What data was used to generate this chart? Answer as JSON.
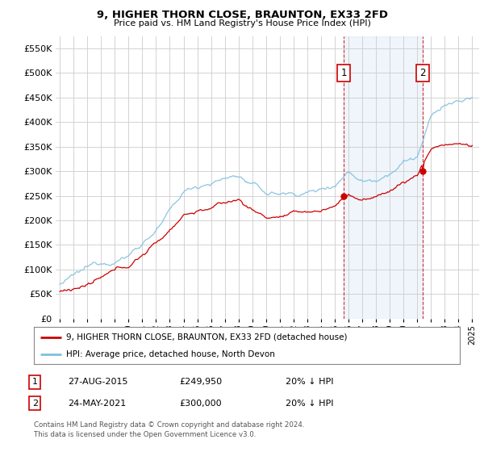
{
  "title": "9, HIGHER THORN CLOSE, BRAUNTON, EX33 2FD",
  "subtitle": "Price paid vs. HM Land Registry's House Price Index (HPI)",
  "legend_line1": "9, HIGHER THORN CLOSE, BRAUNTON, EX33 2FD (detached house)",
  "legend_line2": "HPI: Average price, detached house, North Devon",
  "ann1": {
    "label": "1",
    "date": "27-AUG-2015",
    "price": "£249,950",
    "pct": "20% ↓ HPI",
    "x_year": 2015.65,
    "y_val": 249950
  },
  "ann2": {
    "label": "2",
    "date": "24-MAY-2021",
    "price": "£300,000",
    "pct": "20% ↓ HPI",
    "x_year": 2021.38,
    "y_val": 300000
  },
  "footnote": "Contains HM Land Registry data © Crown copyright and database right 2024.\nThis data is licensed under the Open Government Licence v3.0.",
  "hpi_color": "#7fbfdf",
  "price_color": "#cc0000",
  "shade_color": "#ddeeff",
  "vline_color": "#cc0000",
  "ann_box_color": "#cc0000",
  "ylim": [
    0,
    575000
  ],
  "xlim_left": 1994.7,
  "xlim_right": 2025.5,
  "background_color": "#ffffff",
  "plot_bg_color": "#ffffff",
  "grid_color": "#cccccc"
}
